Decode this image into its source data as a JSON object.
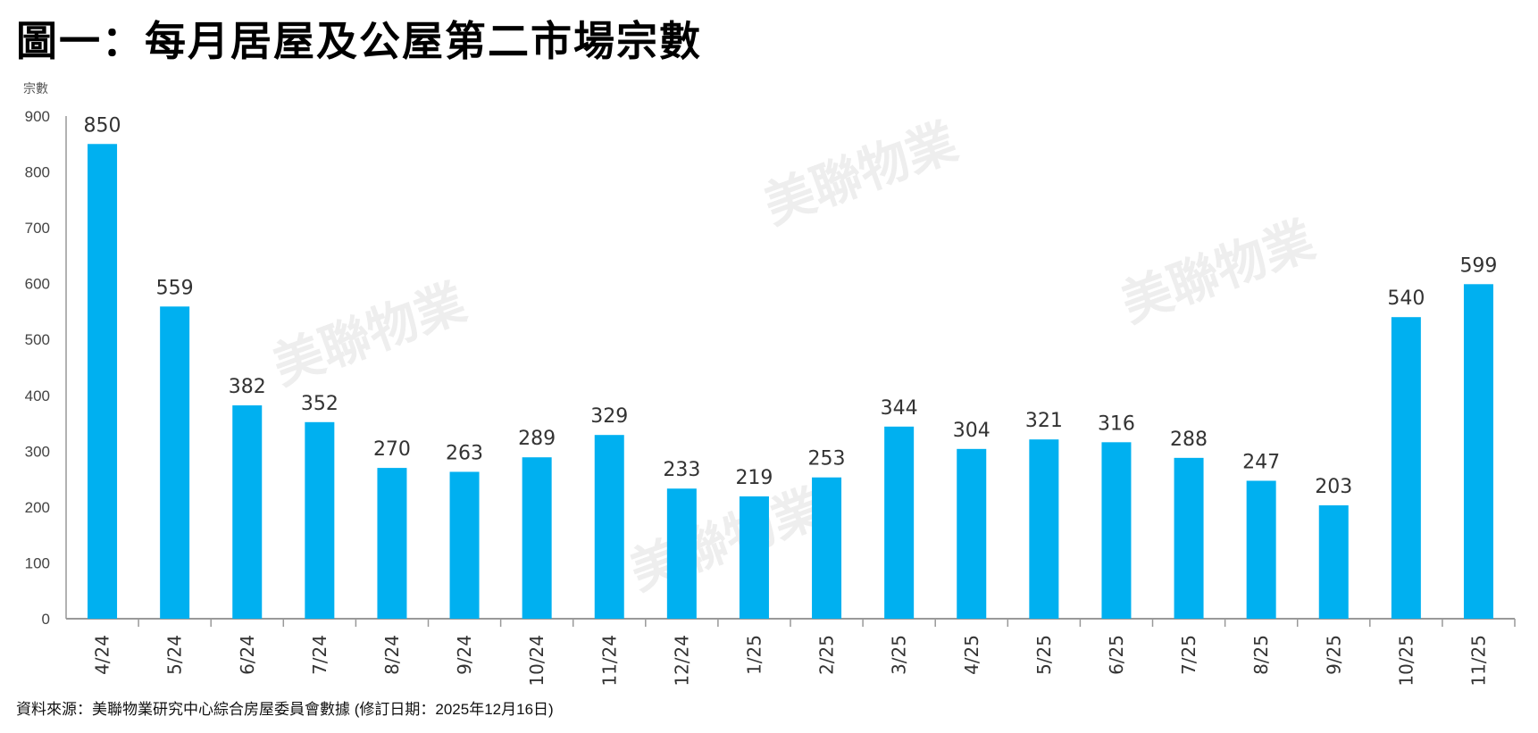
{
  "title": "圖一：每月居屋及公屋第二市場宗數",
  "source": "資料來源：美聯物業研究中心綜合房屋委員會數據 (修訂日期：2025年12月16日)",
  "watermark": "美聯物業 MIDLAND REALTY",
  "chart_data": {
    "type": "bar",
    "title": "圖一：每月居屋及公屋第二市場宗數",
    "ylabel": "宗數",
    "xlabel": "",
    "ylim": [
      0,
      900
    ],
    "yticks": [
      0,
      100,
      200,
      300,
      400,
      500,
      600,
      700,
      800,
      900
    ],
    "grid": false,
    "bar_color": "#00B0F0",
    "categories": [
      "4/24",
      "5/24",
      "6/24",
      "7/24",
      "8/24",
      "9/24",
      "10/24",
      "11/24",
      "12/24",
      "1/25",
      "2/25",
      "3/25",
      "4/25",
      "5/25",
      "6/25",
      "7/25",
      "8/25",
      "9/25",
      "10/25",
      "11/25"
    ],
    "values": [
      850,
      559,
      382,
      352,
      270,
      263,
      289,
      329,
      233,
      219,
      253,
      344,
      304,
      321,
      316,
      288,
      247,
      203,
      540,
      599
    ]
  }
}
